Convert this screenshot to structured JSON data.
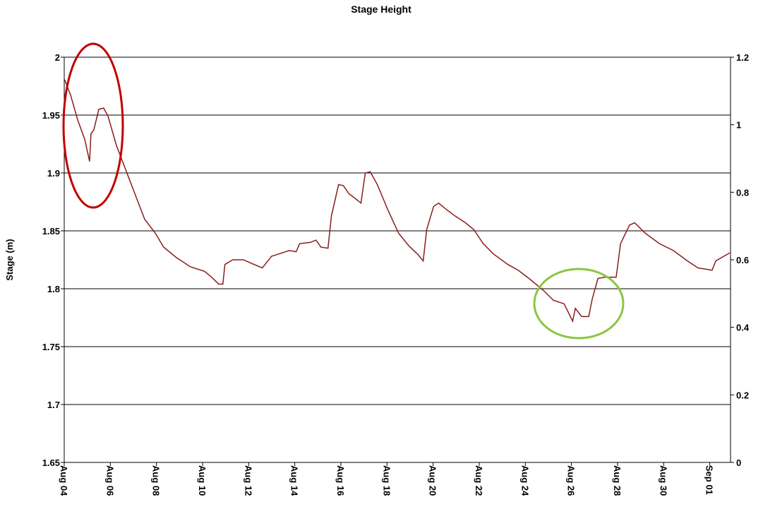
{
  "chart_data": {
    "type": "line",
    "title": "Stage Height",
    "y_label": "Stage (m)",
    "color": "#8b1c1c",
    "grid": true,
    "x": [
      4.0,
      4.03,
      4.28,
      4.58,
      4.89,
      5.1,
      5.16,
      5.28,
      5.5,
      5.71,
      5.9,
      6.26,
      6.72,
      7.18,
      7.49,
      7.95,
      8.31,
      8.86,
      9.47,
      10.09,
      10.39,
      10.7,
      10.88,
      10.97,
      11.31,
      11.77,
      12.23,
      12.59,
      12.99,
      13.3,
      13.76,
      14.06,
      14.21,
      14.67,
      14.92,
      15.13,
      15.44,
      15.59,
      15.9,
      16.11,
      16.35,
      16.75,
      16.87,
      16.97,
      17.06,
      17.27,
      17.58,
      18.04,
      18.5,
      18.95,
      19.32,
      19.57,
      19.72,
      20.02,
      20.24,
      20.54,
      20.94,
      21.4,
      21.77,
      22.17,
      22.62,
      23.24,
      23.69,
      24.15,
      24.76,
      25.22,
      25.68,
      25.83,
      26.05,
      26.17,
      26.44,
      26.75,
      26.9,
      27.15,
      27.45,
      27.94,
      28.13,
      28.52,
      28.74,
      29.2,
      29.81,
      30.42,
      31.03,
      31.49,
      32.1,
      32.26,
      32.87
    ],
    "values": [
      1.981,
      1.98,
      1.967,
      1.946,
      1.929,
      1.91,
      1.934,
      1.937,
      1.955,
      1.956,
      1.949,
      1.924,
      1.9,
      1.876,
      1.86,
      1.848,
      1.836,
      1.827,
      1.819,
      1.815,
      1.81,
      1.804,
      1.804,
      1.821,
      1.825,
      1.825,
      1.821,
      1.818,
      1.828,
      1.83,
      1.833,
      1.832,
      1.839,
      1.84,
      1.842,
      1.836,
      1.835,
      1.863,
      1.89,
      1.889,
      1.882,
      1.876,
      1.874,
      1.888,
      1.9,
      1.901,
      1.89,
      1.868,
      1.848,
      1.837,
      1.83,
      1.824,
      1.851,
      1.871,
      1.874,
      1.869,
      1.863,
      1.857,
      1.851,
      1.839,
      1.83,
      1.821,
      1.816,
      1.809,
      1.799,
      1.79,
      1.787,
      1.781,
      1.772,
      1.783,
      1.776,
      1.776,
      1.791,
      1.809,
      1.81,
      1.81,
      1.839,
      1.855,
      1.857,
      1.848,
      1.839,
      1.833,
      1.824,
      1.818,
      1.816,
      1.824,
      1.831
    ],
    "xlim": [
      4,
      32.9
    ],
    "xticks": [
      {
        "value": 4,
        "label": "Aug 04"
      },
      {
        "value": 6,
        "label": "Aug 06"
      },
      {
        "value": 8,
        "label": "Aug 08"
      },
      {
        "value": 10,
        "label": "Aug 10"
      },
      {
        "value": 12,
        "label": "Aug 12"
      },
      {
        "value": 14,
        "label": "Aug 14"
      },
      {
        "value": 16,
        "label": "Aug 16"
      },
      {
        "value": 18,
        "label": "Aug 18"
      },
      {
        "value": 20,
        "label": "Aug 20"
      },
      {
        "value": 22,
        "label": "Aug 22"
      },
      {
        "value": 24,
        "label": "Aug 24"
      },
      {
        "value": 26,
        "label": "Aug 26"
      },
      {
        "value": 28,
        "label": "Aug 28"
      },
      {
        "value": 30,
        "label": "Aug 30"
      },
      {
        "value": 32,
        "label": "Sep 01"
      }
    ],
    "ylim": [
      1.65,
      2
    ],
    "yticks": [
      1.65,
      1.7,
      1.75,
      1.8,
      1.85,
      1.9,
      1.95,
      2
    ],
    "y2lim": [
      0,
      1.2
    ],
    "y2ticks": [
      0,
      0.2,
      0.4,
      0.6,
      0.8,
      1,
      1.2
    ]
  }
}
